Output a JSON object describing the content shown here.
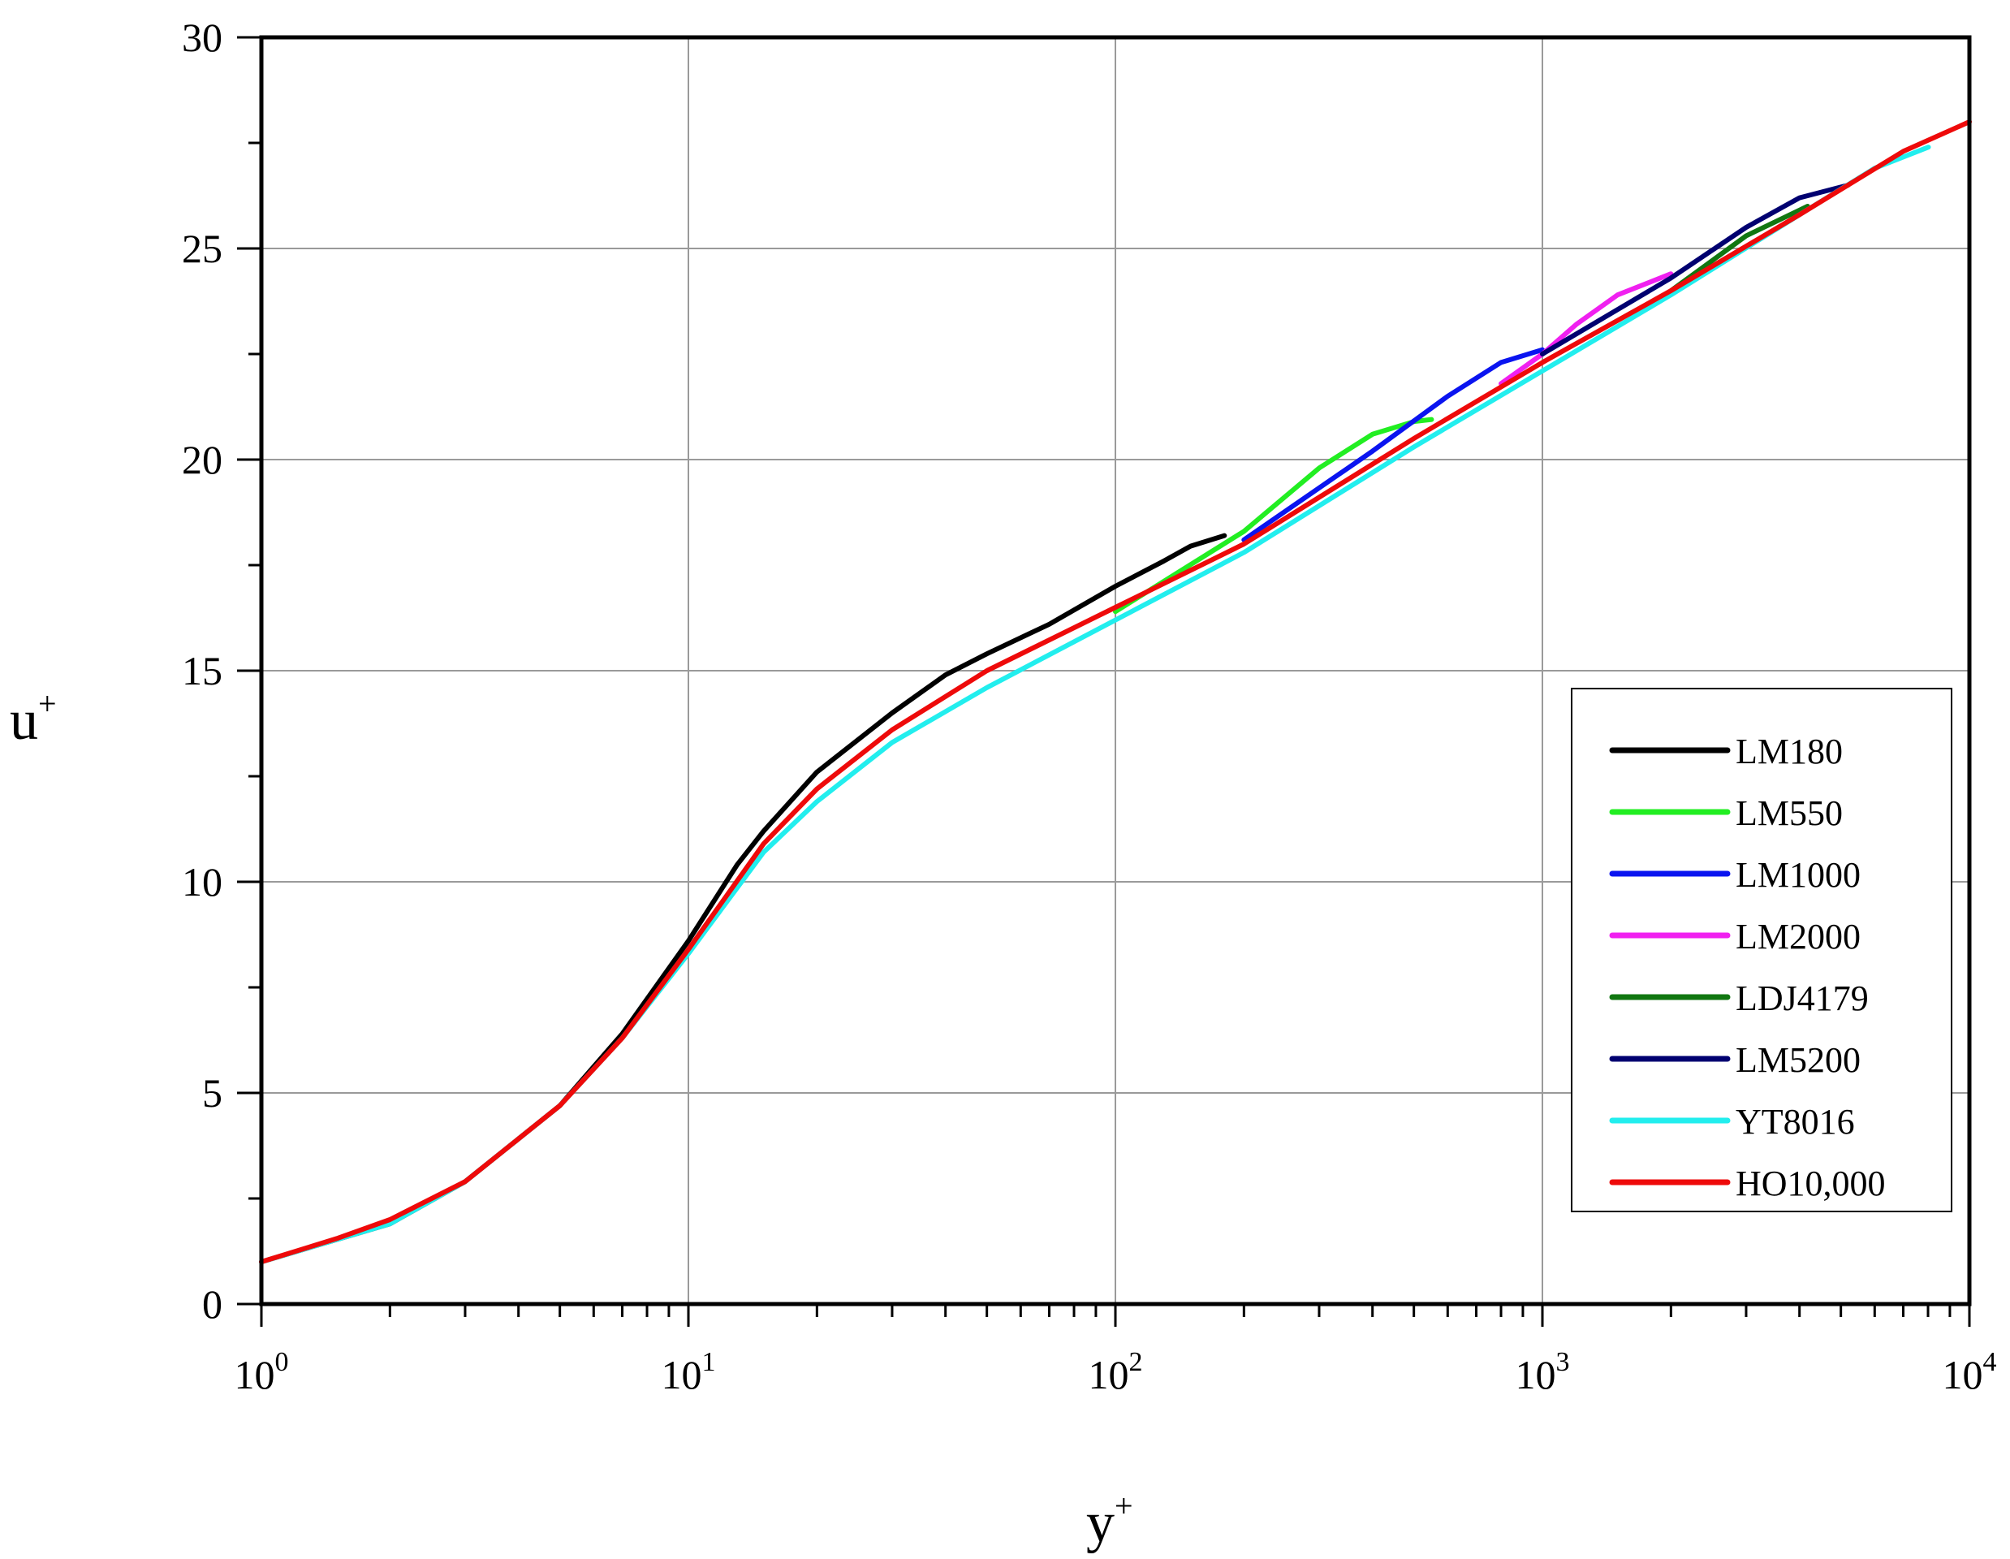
{
  "chart_data": {
    "type": "line",
    "xlabel": "y",
    "xlabel_sup": "+",
    "ylabel": "u",
    "ylabel_sup": "+",
    "x_scale": "log",
    "xlim": [
      1,
      10000
    ],
    "ylim": [
      0,
      30
    ],
    "x_ticks": [
      {
        "value": 1,
        "base": "10",
        "exp": "0"
      },
      {
        "value": 10,
        "base": "10",
        "exp": "1"
      },
      {
        "value": 100,
        "base": "10",
        "exp": "2"
      },
      {
        "value": 1000,
        "base": "10",
        "exp": "3"
      },
      {
        "value": 10000,
        "base": "10",
        "exp": "4"
      }
    ],
    "y_ticks": [
      {
        "value": 0,
        "label": "0"
      },
      {
        "value": 5,
        "label": "5"
      },
      {
        "value": 10,
        "label": "10"
      },
      {
        "value": 15,
        "label": "15"
      },
      {
        "value": 20,
        "label": "20"
      },
      {
        "value": 25,
        "label": "25"
      },
      {
        "value": 30,
        "label": "30"
      }
    ],
    "grid": true,
    "legend_position": "lower-right",
    "series": [
      {
        "name": "LM180",
        "color": "#000000",
        "x": [
          1,
          2,
          3,
          5,
          7,
          10,
          13,
          15,
          20,
          30,
          40,
          50,
          70,
          100,
          130,
          150,
          180
        ],
        "y": [
          1.0,
          1.9,
          2.9,
          4.7,
          6.4,
          8.6,
          10.4,
          11.2,
          12.6,
          14.0,
          14.9,
          15.4,
          16.1,
          17.0,
          17.6,
          17.95,
          18.2
        ]
      },
      {
        "name": "LM550",
        "color": "#22ee22",
        "x": [
          100,
          200,
          300,
          400,
          500,
          550
        ],
        "y": [
          16.4,
          18.3,
          19.8,
          20.6,
          20.9,
          20.95
        ]
      },
      {
        "name": "LM1000",
        "color": "#0a14f0",
        "x": [
          200,
          400,
          600,
          800,
          1000
        ],
        "y": [
          18.1,
          20.2,
          21.5,
          22.3,
          22.6
        ]
      },
      {
        "name": "LM2000",
        "color": "#f020f0",
        "x": [
          800,
          1000,
          1200,
          1500,
          2000
        ],
        "y": [
          21.8,
          22.5,
          23.2,
          23.9,
          24.4
        ]
      },
      {
        "name": "LDJ4179",
        "color": "#117711",
        "x": [
          2000,
          3000,
          4179
        ],
        "y": [
          24.0,
          25.3,
          26.0
        ]
      },
      {
        "name": "LM5200",
        "color": "#000070",
        "x": [
          1000,
          2000,
          3000,
          4000,
          5200
        ],
        "y": [
          22.5,
          24.3,
          25.5,
          26.2,
          26.5
        ]
      },
      {
        "name": "YT8016",
        "color": "#22eeee",
        "x": [
          1,
          2,
          3,
          5,
          7,
          10,
          15,
          20,
          30,
          50,
          100,
          200,
          500,
          1000,
          2000,
          4000,
          6000,
          8016
        ],
        "y": [
          1.0,
          1.9,
          2.9,
          4.7,
          6.3,
          8.3,
          10.7,
          11.9,
          13.3,
          14.6,
          16.2,
          17.8,
          20.3,
          22.1,
          23.9,
          25.8,
          26.9,
          27.4
        ]
      },
      {
        "name": "HO10,000",
        "color": "#ee0a0a",
        "x": [
          1,
          1.5,
          2,
          3,
          5,
          7,
          10,
          15,
          20,
          30,
          50,
          100,
          200,
          500,
          1000,
          2000,
          4000,
          7000,
          10000
        ],
        "y": [
          1.0,
          1.55,
          2.0,
          2.9,
          4.7,
          6.3,
          8.4,
          10.9,
          12.2,
          13.6,
          15.0,
          16.5,
          18.0,
          20.5,
          22.3,
          24.0,
          25.8,
          27.3,
          28.0
        ]
      }
    ]
  }
}
